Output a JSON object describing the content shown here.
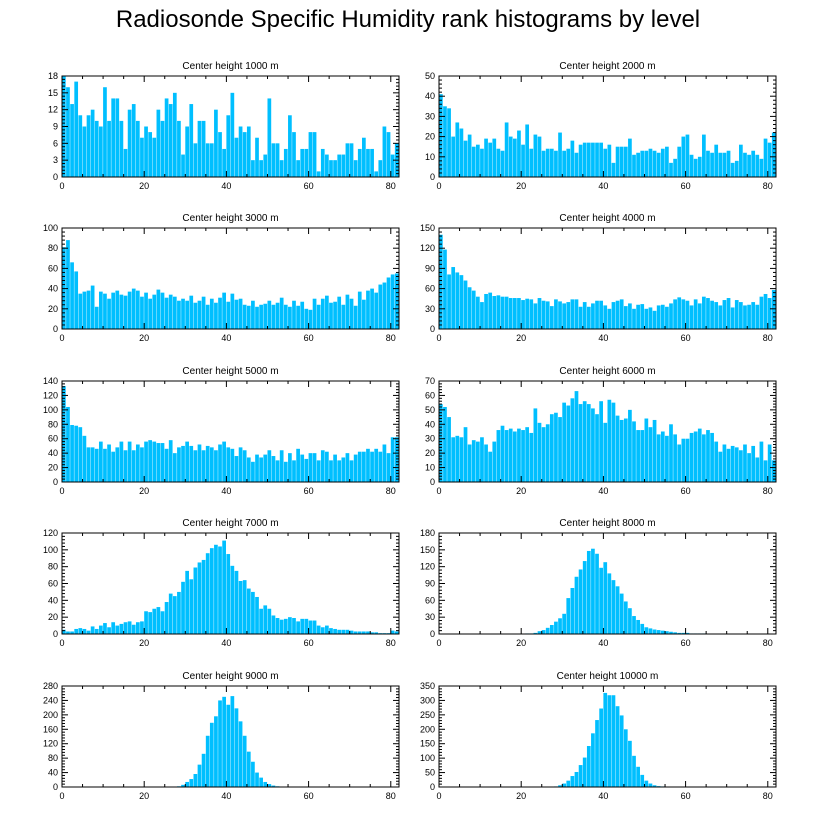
{
  "figure": {
    "title": "Radiosonde Specific Humidity rank histograms by level"
  },
  "colors": {
    "bar": "#00bfff",
    "axis": "#000000"
  },
  "chart_data": [
    {
      "type": "bar",
      "title": "Center height 1000 m",
      "xlim": [
        0,
        82
      ],
      "ylim": [
        0,
        18
      ],
      "xticks": [
        0,
        20,
        40,
        60,
        80
      ],
      "yticks": [
        0,
        3,
        6,
        9,
        12,
        15,
        18
      ],
      "values": [
        18,
        16,
        13,
        17,
        11,
        9,
        11,
        12,
        10,
        9,
        16,
        10,
        14,
        14,
        10,
        5,
        12,
        13,
        10,
        7,
        9,
        8,
        7,
        12,
        10,
        14,
        13,
        15,
        10,
        4,
        9,
        13,
        6,
        10,
        10,
        6,
        6,
        12,
        8,
        5,
        11,
        15,
        7,
        9,
        8,
        9,
        3,
        7,
        3,
        4,
        14,
        6,
        6,
        3,
        5,
        11,
        8,
        3,
        5,
        5,
        8,
        8,
        1,
        5,
        4,
        3,
        3,
        4,
        4,
        6,
        6,
        3,
        5,
        7,
        5,
        5,
        1,
        3,
        9,
        8,
        4,
        6
      ]
    },
    {
      "type": "bar",
      "title": "Center height 2000 m",
      "xlim": [
        0,
        82
      ],
      "ylim": [
        0,
        50
      ],
      "xticks": [
        0,
        20,
        40,
        60,
        80
      ],
      "yticks": [
        0,
        10,
        20,
        30,
        40,
        50
      ],
      "values": [
        41,
        35,
        34,
        20,
        27,
        24,
        18,
        21,
        15,
        16,
        14,
        19,
        17,
        19,
        14,
        13,
        27,
        20,
        19,
        23,
        16,
        26,
        14,
        21,
        20,
        13,
        14,
        14,
        13,
        22,
        13,
        14,
        18,
        12,
        16,
        17,
        17,
        17,
        17,
        17,
        14,
        16,
        7,
        15,
        15,
        15,
        19,
        11,
        12,
        13,
        13,
        14,
        13,
        12,
        14,
        15,
        7,
        9,
        15,
        20,
        21,
        11,
        9,
        10,
        21,
        13,
        12,
        16,
        12,
        12,
        13,
        7,
        8,
        16,
        12,
        11,
        13,
        11,
        9,
        19,
        17,
        22
      ]
    },
    {
      "type": "bar",
      "title": "Center height 3000 m",
      "xlim": [
        0,
        82
      ],
      "ylim": [
        0,
        100
      ],
      "xticks": [
        0,
        20,
        40,
        60,
        80
      ],
      "yticks": [
        0,
        20,
        40,
        60,
        80,
        100
      ],
      "values": [
        81,
        88,
        66,
        57,
        35,
        37,
        38,
        43,
        22,
        37,
        35,
        30,
        36,
        38,
        34,
        33,
        37,
        40,
        38,
        32,
        36,
        30,
        34,
        39,
        36,
        31,
        34,
        32,
        28,
        30,
        28,
        33,
        26,
        28,
        32,
        24,
        30,
        26,
        31,
        36,
        27,
        35,
        29,
        30,
        24,
        23,
        28,
        22,
        24,
        25,
        28,
        24,
        26,
        31,
        24,
        22,
        28,
        23,
        27,
        20,
        19,
        30,
        24,
        30,
        33,
        26,
        27,
        32,
        24,
        34,
        30,
        23,
        37,
        29,
        38,
        40,
        36,
        44,
        46,
        51,
        54,
        55
      ]
    },
    {
      "type": "bar",
      "title": "Center height 4000 m",
      "xlim": [
        0,
        82
      ],
      "ylim": [
        0,
        150
      ],
      "xticks": [
        0,
        20,
        40,
        60,
        80
      ],
      "yticks": [
        0,
        30,
        60,
        90,
        120,
        150
      ],
      "values": [
        140,
        118,
        81,
        92,
        84,
        80,
        72,
        62,
        57,
        48,
        40,
        52,
        54,
        49,
        50,
        48,
        48,
        46,
        46,
        46,
        43,
        45,
        44,
        38,
        46,
        42,
        41,
        34,
        44,
        41,
        38,
        40,
        44,
        44,
        33,
        40,
        33,
        38,
        42,
        42,
        35,
        30,
        40,
        42,
        44,
        34,
        38,
        30,
        36,
        37,
        30,
        32,
        27,
        35,
        36,
        33,
        38,
        44,
        47,
        44,
        42,
        35,
        44,
        38,
        48,
        46,
        42,
        40,
        35,
        43,
        46,
        32,
        43,
        40,
        35,
        36,
        40,
        36,
        48,
        52,
        46,
        58
      ]
    },
    {
      "type": "bar",
      "title": "Center height 5000 m",
      "xlim": [
        0,
        82
      ],
      "ylim": [
        0,
        140
      ],
      "xticks": [
        0,
        20,
        40,
        60,
        80
      ],
      "yticks": [
        0,
        20,
        40,
        60,
        80,
        100,
        120,
        140
      ],
      "values": [
        133,
        104,
        79,
        78,
        76,
        64,
        48,
        48,
        46,
        56,
        46,
        52,
        42,
        48,
        56,
        44,
        56,
        44,
        52,
        48,
        56,
        58,
        56,
        54,
        54,
        46,
        58,
        40,
        48,
        50,
        56,
        50,
        44,
        52,
        44,
        50,
        48,
        44,
        52,
        56,
        48,
        46,
        36,
        48,
        44,
        34,
        28,
        38,
        34,
        38,
        44,
        36,
        30,
        44,
        28,
        40,
        30,
        46,
        38,
        32,
        40,
        40,
        30,
        44,
        42,
        30,
        38,
        30,
        34,
        40,
        30,
        38,
        42,
        42,
        46,
        42,
        46,
        42,
        52,
        40,
        62,
        62
      ]
    },
    {
      "type": "bar",
      "title": "Center height 6000 m",
      "xlim": [
        0,
        82
      ],
      "ylim": [
        0,
        70
      ],
      "xticks": [
        0,
        20,
        40,
        60,
        80
      ],
      "yticks": [
        0,
        10,
        20,
        30,
        40,
        50,
        60,
        70
      ],
      "values": [
        54,
        52,
        45,
        31,
        32,
        31,
        38,
        26,
        29,
        28,
        31,
        26,
        21,
        28,
        36,
        39,
        36,
        37,
        35,
        37,
        36,
        38,
        34,
        51,
        41,
        38,
        40,
        47,
        48,
        45,
        55,
        53,
        58,
        63,
        54,
        56,
        54,
        51,
        47,
        56,
        41,
        57,
        55,
        46,
        43,
        44,
        50,
        42,
        36,
        36,
        44,
        38,
        43,
        33,
        35,
        32,
        40,
        33,
        26,
        30,
        30,
        34,
        35,
        37,
        33,
        36,
        34,
        28,
        21,
        26,
        23,
        25,
        24,
        22,
        26,
        20,
        25,
        17,
        28,
        15,
        26,
        15
      ]
    },
    {
      "type": "bar",
      "title": "Center height 7000 m",
      "xlim": [
        0,
        82
      ],
      "ylim": [
        0,
        120
      ],
      "xticks": [
        0,
        20,
        40,
        60,
        80
      ],
      "yticks": [
        0,
        20,
        40,
        60,
        80,
        100,
        120
      ],
      "values": [
        5,
        3,
        3,
        6,
        7,
        6,
        4,
        9,
        6,
        10,
        13,
        8,
        14,
        10,
        12,
        14,
        15,
        11,
        14,
        15,
        27,
        26,
        30,
        32,
        27,
        38,
        48,
        45,
        50,
        62,
        75,
        65,
        79,
        85,
        88,
        96,
        102,
        106,
        104,
        111,
        95,
        81,
        75,
        63,
        64,
        54,
        50,
        44,
        30,
        34,
        30,
        22,
        19,
        17,
        18,
        20,
        19,
        15,
        18,
        18,
        16,
        16,
        10,
        8,
        10,
        7,
        6,
        5,
        5,
        5,
        4,
        3,
        3,
        3,
        3,
        2,
        2,
        1,
        1,
        1,
        4,
        3
      ]
    },
    {
      "type": "bar",
      "title": "Center height 8000 m",
      "xlim": [
        0,
        82
      ],
      "ylim": [
        0,
        180
      ],
      "xticks": [
        0,
        20,
        40,
        60,
        80
      ],
      "yticks": [
        0,
        30,
        60,
        90,
        120,
        150,
        180
      ],
      "values": [
        0,
        0,
        0,
        0,
        0,
        0,
        0,
        0,
        0,
        0,
        0,
        0,
        0,
        0,
        0,
        0,
        0,
        0,
        0,
        0,
        0,
        1,
        1,
        2,
        5,
        7,
        11,
        16,
        22,
        28,
        36,
        64,
        82,
        102,
        115,
        130,
        148,
        152,
        143,
        118,
        128,
        108,
        96,
        85,
        72,
        58,
        46,
        32,
        25,
        18,
        12,
        10,
        8,
        7,
        6,
        5,
        4,
        3,
        2,
        2,
        2,
        1,
        1,
        1,
        1,
        0,
        0,
        0,
        0,
        0,
        0,
        0,
        0,
        0,
        0,
        0,
        0,
        0,
        0,
        0,
        0,
        0
      ]
    },
    {
      "type": "bar",
      "title": "Center height 9000 m",
      "xlim": [
        0,
        82
      ],
      "ylim": [
        0,
        280
      ],
      "xticks": [
        0,
        20,
        40,
        60,
        80
      ],
      "yticks": [
        0,
        40,
        80,
        120,
        160,
        200,
        240,
        280
      ],
      "values": [
        0,
        0,
        0,
        0,
        0,
        0,
        0,
        0,
        0,
        0,
        0,
        0,
        0,
        0,
        0,
        0,
        0,
        0,
        0,
        0,
        0,
        0,
        0,
        0,
        0,
        0,
        0,
        0,
        2,
        6,
        14,
        22,
        36,
        62,
        92,
        142,
        178,
        196,
        240,
        250,
        228,
        252,
        218,
        182,
        142,
        98,
        70,
        40,
        26,
        14,
        8,
        4,
        2,
        1,
        0,
        0,
        0,
        0,
        0,
        0,
        0,
        0,
        0,
        0,
        0,
        0,
        0,
        0,
        0,
        0,
        0,
        0,
        0,
        0,
        0,
        0,
        0,
        0,
        0,
        0,
        0,
        0
      ]
    },
    {
      "type": "bar",
      "title": "Center height 10000 m",
      "xlim": [
        0,
        82
      ],
      "ylim": [
        0,
        350
      ],
      "xticks": [
        0,
        20,
        40,
        60,
        80
      ],
      "yticks": [
        0,
        50,
        100,
        150,
        200,
        250,
        300,
        350
      ],
      "values": [
        0,
        0,
        0,
        0,
        0,
        0,
        0,
        0,
        0,
        0,
        0,
        0,
        0,
        0,
        0,
        0,
        0,
        0,
        0,
        0,
        0,
        0,
        0,
        0,
        0,
        0,
        0,
        0,
        2,
        6,
        12,
        22,
        38,
        52,
        76,
        102,
        142,
        186,
        232,
        272,
        326,
        318,
        318,
        280,
        248,
        200,
        160,
        108,
        70,
        42,
        22,
        12,
        6,
        3,
        2,
        1,
        0,
        0,
        0,
        0,
        0,
        0,
        0,
        0,
        0,
        0,
        0,
        0,
        0,
        0,
        0,
        0,
        0,
        0,
        0,
        0,
        0,
        0,
        0,
        0,
        0,
        0
      ]
    }
  ]
}
